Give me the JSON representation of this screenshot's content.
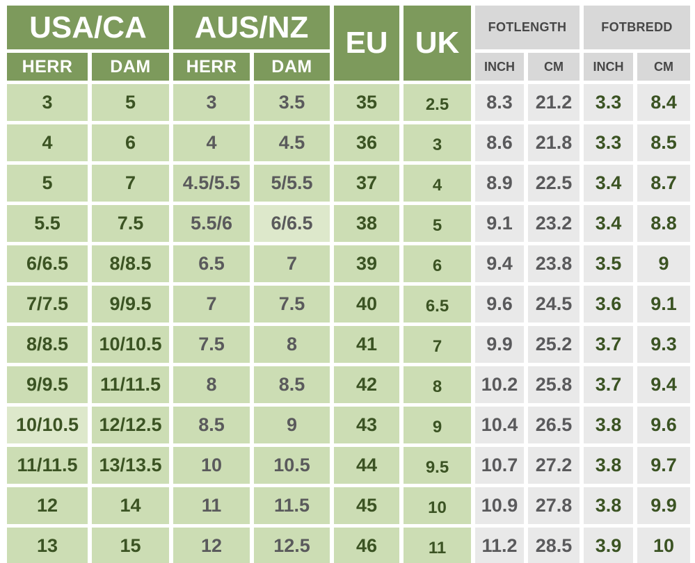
{
  "chart_data": {
    "type": "table",
    "header": {
      "usa_ca": "USA/CA",
      "aus_nz": "AUS/NZ",
      "eu": "EU",
      "uk": "UK",
      "fotlength": "FOTLENGTH",
      "fotbredd": "FOTBREDD"
    },
    "subheaders": [
      "HERR",
      "DAM",
      "HERR",
      "DAM",
      "INCH",
      "CM",
      "INCH",
      "CM"
    ],
    "columns": [
      "USA/CA HERR",
      "USA/CA DAM",
      "AUS/NZ HERR",
      "AUS/NZ DAM",
      "EU",
      "UK",
      "FOTLENGTH INCH",
      "FOTLENGTH CM",
      "FOTBREDD INCH",
      "FOTBREDD CM"
    ],
    "rows": [
      [
        "3",
        "5",
        "3",
        "3.5",
        "35",
        "2.5",
        "8.3",
        "21.2",
        "3.3",
        "8.4"
      ],
      [
        "4",
        "6",
        "4",
        "4.5",
        "36",
        "3",
        "8.6",
        "21.8",
        "3.3",
        "8.5"
      ],
      [
        "5",
        "7",
        "4.5/5.5",
        "5/5.5",
        "37",
        "4",
        "8.9",
        "22.5",
        "3.4",
        "8.7"
      ],
      [
        "5.5",
        "7.5",
        "5.5/6",
        "6/6.5",
        "38",
        "5",
        "9.1",
        "23.2",
        "3.4",
        "8.8"
      ],
      [
        "6/6.5",
        "8/8.5",
        "6.5",
        "7",
        "39",
        "6",
        "9.4",
        "23.8",
        "3.5",
        "9"
      ],
      [
        "7/7.5",
        "9/9.5",
        "7",
        "7.5",
        "40",
        "6.5",
        "9.6",
        "24.5",
        "3.6",
        "9.1"
      ],
      [
        "8/8.5",
        "10/10.5",
        "7.5",
        "8",
        "41",
        "7",
        "9.9",
        "25.2",
        "3.7",
        "9.3"
      ],
      [
        "9/9.5",
        "11/11.5",
        "8",
        "8.5",
        "42",
        "8",
        "10.2",
        "25.8",
        "3.7",
        "9.4"
      ],
      [
        "10/10.5",
        "12/12.5",
        "8.5",
        "9",
        "43",
        "9",
        "10.4",
        "26.5",
        "3.8",
        "9.6"
      ],
      [
        "11/11.5",
        "13/13.5",
        "10",
        "10.5",
        "44",
        "9.5",
        "10.7",
        "27.2",
        "3.8",
        "9.7"
      ],
      [
        "12",
        "14",
        "11",
        "11.5",
        "45",
        "10",
        "10.9",
        "27.8",
        "3.8",
        "9.9"
      ],
      [
        "13",
        "15",
        "12",
        "12.5",
        "46",
        "11",
        "11.2",
        "28.5",
        "3.9",
        "10"
      ]
    ],
    "light_cells": [
      [
        3,
        3
      ],
      [
        8,
        0
      ]
    ]
  },
  "style": {
    "colors": {
      "header_green": "#7d9a5c",
      "cell_green": "#ccddb4",
      "cell_green_light": "#dde8cb",
      "cell_grey": "#e9e9e9",
      "header_grey": "#d8d8d8",
      "text_dark_green": "#3b5323",
      "text_grey": "#5a5a5c",
      "text_header_grey": "#474747",
      "header_text_white": "#ffffff",
      "gap_white": "#ffffff"
    }
  }
}
